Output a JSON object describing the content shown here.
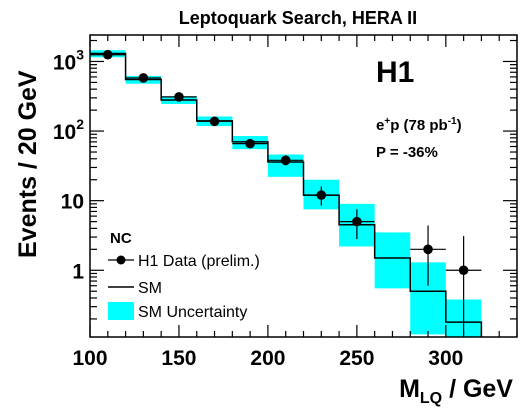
{
  "chart_data": {
    "type": "histogram",
    "title": "Leptoquark Search, HERA II",
    "xlabel_main": "M",
    "xlabel_sub": "LQ",
    "xlabel_unit": " / GeV",
    "ylabel": "Events / 20 GeV",
    "yscale": "log",
    "xlim": [
      100,
      340
    ],
    "ylim": [
      0.11,
      2400
    ],
    "x_ticks": [
      100,
      150,
      200,
      250,
      300
    ],
    "y_ticks": [
      {
        "value": 1,
        "label": "1"
      },
      {
        "value": 10,
        "label": "10"
      },
      {
        "value": 100,
        "base": "10",
        "exp": "2"
      },
      {
        "value": 1000,
        "base": "10",
        "exp": "3"
      }
    ],
    "experiment": "H1",
    "beam": "e",
    "beam_sup": "+",
    "beam_suffix": "p (78 pb",
    "lumi_sup": "-1",
    "beam_close": ")",
    "polarization": "P = -36%",
    "legend": {
      "title": "NC",
      "data_label": "H1 Data (prelim.)",
      "sm_label": "SM",
      "unc_label": "SM Uncertainty"
    },
    "bin_edges": [
      100,
      120,
      140,
      160,
      180,
      200,
      220,
      240,
      260,
      280,
      300,
      320
    ],
    "sm": [
      1300,
      550,
      280,
      140,
      70,
      36,
      12,
      4.5,
      1.5,
      0.5,
      0.18
    ],
    "sm_uncertainty": [
      [
        1150,
        1450
      ],
      [
        480,
        620
      ],
      [
        245,
        315
      ],
      [
        118,
        162
      ],
      [
        55,
        85
      ],
      [
        22,
        46
      ],
      [
        7.5,
        20
      ],
      [
        2.2,
        9
      ],
      [
        0.55,
        3.5
      ],
      [
        0.12,
        1.3
      ],
      [
        0.05,
        0.38
      ]
    ],
    "data": [
      {
        "x": 110,
        "y": 1250,
        "lo": 1180,
        "hi": 1320
      },
      {
        "x": 130,
        "y": 580,
        "lo": 540,
        "hi": 625
      },
      {
        "x": 150,
        "y": 310,
        "lo": 282,
        "hi": 340
      },
      {
        "x": 170,
        "y": 138,
        "lo": 120,
        "hi": 157
      },
      {
        "x": 190,
        "y": 66,
        "lo": 58,
        "hi": 76
      },
      {
        "x": 210,
        "y": 38,
        "lo": 32,
        "hi": 45
      },
      {
        "x": 230,
        "y": 12,
        "lo": 8.5,
        "hi": 16
      },
      {
        "x": 250,
        "y": 5,
        "lo": 2.8,
        "hi": 7.5
      },
      {
        "x": 290,
        "y": 2,
        "lo": 0.6,
        "hi": 4.4
      },
      {
        "x": 310,
        "y": 1,
        "lo": 0.12,
        "hi": 3.1
      }
    ],
    "colors": {
      "uncertainty": "#00ffff",
      "sm_line": "#000000",
      "data": "#000000"
    }
  }
}
